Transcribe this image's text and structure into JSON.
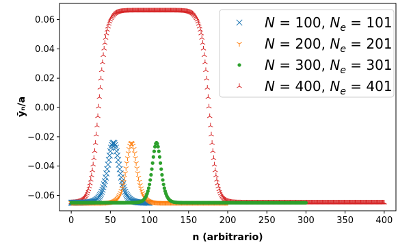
{
  "chart_data": {
    "type": "scatter",
    "xlabel": "n (arbitrario)",
    "ylabel": "ȳₙ/a",
    "xlim": [
      -15,
      415
    ],
    "ylim": [
      -0.0705,
      0.071
    ],
    "x_ticks": [
      0,
      50,
      100,
      150,
      200,
      250,
      300,
      350,
      400
    ],
    "x_tick_labels": [
      "0",
      "50",
      "100",
      "150",
      "200",
      "250",
      "300",
      "350",
      "400"
    ],
    "y_ticks": [
      -0.06,
      -0.04,
      -0.02,
      0.0,
      0.02,
      0.04,
      0.06
    ],
    "y_tick_labels": [
      "−0.06",
      "−0.04",
      "−0.02",
      "0.00",
      "0.02",
      "0.04",
      "0.06"
    ],
    "grid": false,
    "legend_position": "top-right",
    "series": [
      {
        "name": "N = 100, N_e = 101",
        "label_parts": [
          "N",
          " = 100, ",
          "N",
          "e",
          " = 101"
        ],
        "marker": "x",
        "color": "#1f77b4",
        "n_points": 101,
        "profile": "pulse",
        "baseline": -0.065,
        "peak_value": -0.024,
        "peak_x": 54,
        "width": 10,
        "x_range": [
          0,
          100
        ]
      },
      {
        "name": "N = 200, N_e = 201",
        "label_parts": [
          "N",
          " = 200, ",
          "N",
          "e",
          " = 201"
        ],
        "marker": "tri_down",
        "color": "#ff7f0e",
        "n_points": 201,
        "profile": "pulse",
        "baseline": -0.065,
        "peak_value": -0.024,
        "peak_x": 77,
        "width": 9,
        "x_range": [
          0,
          200
        ]
      },
      {
        "name": "N = 300, N_e = 301",
        "label_parts": [
          "N",
          " = 300, ",
          "N",
          "e",
          " = 301"
        ],
        "marker": "dot",
        "color": "#2ca02c",
        "n_points": 301,
        "profile": "pulse",
        "baseline": -0.065,
        "peak_value": -0.024,
        "peak_x": 109,
        "width": 7.5,
        "x_range": [
          0,
          300
        ]
      },
      {
        "name": "N = 400, N_e = 401",
        "label_parts": [
          "N",
          " = 400, ",
          "N",
          "e",
          " = 401"
        ],
        "marker": "tri_up",
        "color": "#d62728",
        "n_points": 401,
        "profile": "plateau",
        "baseline": -0.065,
        "plateau_value": 0.066,
        "rise_center": 35,
        "fall_center": 176,
        "edge_width": 5,
        "x_range": [
          0,
          400
        ]
      }
    ]
  }
}
